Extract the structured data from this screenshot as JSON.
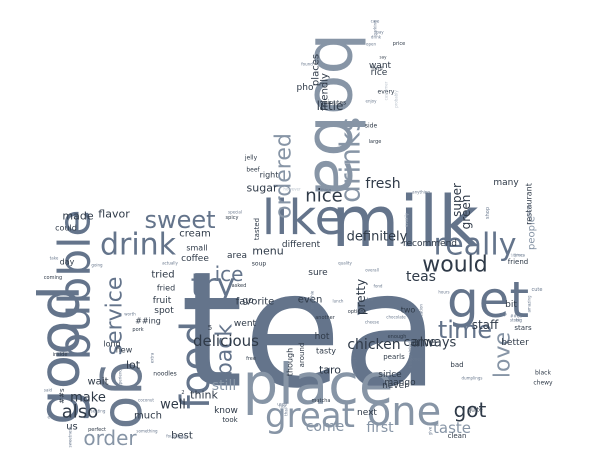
{
  "colors": {
    "background": "#ffffff",
    "palette": [
      "#64748b",
      "#2f3a48",
      "#8795a6",
      "#6b7a8f",
      "#b9c2cc",
      "#98a4b3",
      "#3c4757"
    ]
  },
  "words": [
    {
      "text": "tea",
      "weight": 100,
      "rotate": 0,
      "color": 0
    },
    {
      "text": "milk",
      "weight": 62,
      "rotate": 0,
      "color": 0
    },
    {
      "text": "place",
      "weight": 56,
      "rotate": 0,
      "color": 2
    },
    {
      "text": "boba",
      "weight": 55,
      "rotate": 90,
      "color": 2
    },
    {
      "text": "good",
      "weight": 54,
      "rotate": 270,
      "color": 0
    },
    {
      "text": "go",
      "weight": 48,
      "rotate": 90,
      "color": 3
    },
    {
      "text": "get",
      "weight": 44,
      "rotate": 0,
      "color": 0
    },
    {
      "text": "like",
      "weight": 42,
      "rotate": 0,
      "color": 0
    },
    {
      "text": "bubble",
      "weight": 40,
      "rotate": 270,
      "color": 0
    },
    {
      "text": "one",
      "weight": 36,
      "rotate": 0,
      "color": 2
    },
    {
      "text": "food",
      "weight": 36,
      "rotate": 270,
      "color": 0
    },
    {
      "text": "great",
      "weight": 34,
      "rotate": 0,
      "color": 2
    },
    {
      "text": "drinks",
      "weight": 32,
      "rotate": 270,
      "color": 2
    },
    {
      "text": "drink",
      "weight": 30,
      "rotate": 0,
      "color": 0
    },
    {
      "text": "try",
      "weight": 30,
      "rotate": 0,
      "color": 0
    },
    {
      "text": "really",
      "weight": 28,
      "rotate": 0,
      "color": 0
    },
    {
      "text": "time",
      "weight": 26,
      "rotate": 0,
      "color": 0
    },
    {
      "text": "sweet",
      "weight": 26,
      "rotate": 0,
      "color": 0
    },
    {
      "text": "would",
      "weight": 25,
      "rotate": 0,
      "color": 1
    },
    {
      "text": "ordered",
      "weight": 24,
      "rotate": 270,
      "color": 2
    },
    {
      "text": "back",
      "weight": 24,
      "rotate": 270,
      "color": 0
    },
    {
      "text": "service",
      "weight": 24,
      "rotate": 270,
      "color": 0
    },
    {
      "text": "got",
      "weight": 22,
      "rotate": 0,
      "color": 1
    },
    {
      "text": "love",
      "weight": 22,
      "rotate": 270,
      "color": 2
    },
    {
      "text": "order",
      "weight": 20,
      "rotate": 0,
      "color": 2
    },
    {
      "text": "ice",
      "weight": 20,
      "rotate": 0,
      "color": 0
    },
    {
      "text": "also",
      "weight": 18,
      "rotate": 0,
      "color": 1
    },
    {
      "text": "nice",
      "weight": 18,
      "rotate": 0,
      "color": 1
    },
    {
      "text": "delicious",
      "weight": 16,
      "rotate": 0,
      "color": 1
    },
    {
      "text": "chicken",
      "weight": 16,
      "rotate": 0,
      "color": 1
    },
    {
      "text": "fresh",
      "weight": 16,
      "rotate": 0,
      "color": 1
    },
    {
      "text": "taste",
      "weight": 15,
      "rotate": 0,
      "color": 2
    },
    {
      "text": "come",
      "weight": 15,
      "rotate": 0,
      "color": 2
    },
    {
      "text": "first",
      "weight": 15,
      "rotate": 0,
      "color": 2
    },
    {
      "text": "make",
      "weight": 14,
      "rotate": 0,
      "color": 1
    },
    {
      "text": "well",
      "weight": 14,
      "rotate": 0,
      "color": 1
    },
    {
      "text": "always",
      "weight": 14,
      "rotate": 0,
      "color": 1
    },
    {
      "text": "came",
      "weight": 14,
      "rotate": 0,
      "color": 1
    },
    {
      "text": "definitely",
      "weight": 14,
      "rotate": 0,
      "color": 1
    },
    {
      "text": "teas",
      "weight": 14,
      "rotate": 0,
      "color": 1
    },
    {
      "text": "flavor",
      "weight": 12,
      "rotate": 0,
      "color": 1
    },
    {
      "text": "menu",
      "weight": 12,
      "rotate": 0,
      "color": 1
    },
    {
      "text": "sugar",
      "weight": 12,
      "rotate": 0,
      "color": 1
    },
    {
      "text": "pretty",
      "weight": 12,
      "rotate": 270,
      "color": 1
    },
    {
      "text": "super",
      "weight": 12,
      "rotate": 270,
      "color": 1
    },
    {
      "text": "green",
      "weight": 12,
      "rotate": 270,
      "color": 1
    },
    {
      "text": "staff",
      "weight": 12,
      "rotate": 0,
      "color": 1
    },
    {
      "text": "people",
      "weight": 11,
      "rotate": 270,
      "color": 2
    },
    {
      "text": "little",
      "weight": 12,
      "rotate": 0,
      "color": 1
    },
    {
      "text": "friendly",
      "weight": 12,
      "rotate": 270,
      "color": 1
    },
    {
      "text": "places",
      "weight": 11,
      "rotate": 270,
      "color": 1
    },
    {
      "text": "made",
      "weight": 11,
      "rotate": 0,
      "color": 1
    },
    {
      "text": "tried",
      "weight": 11,
      "rotate": 0,
      "color": 1
    },
    {
      "text": "best",
      "weight": 11,
      "rotate": 0,
      "color": 1
    },
    {
      "text": "much",
      "weight": 11,
      "rotate": 0,
      "color": 1
    },
    {
      "text": "even",
      "weight": 11,
      "rotate": 0,
      "color": 1
    },
    {
      "text": "different",
      "weight": 9,
      "rotate": 0,
      "color": 1
    },
    {
      "text": "recommend",
      "weight": 9,
      "rotate": 0,
      "color": 1
    },
    {
      "text": "many",
      "weight": 9,
      "rotate": 0,
      "color": 1
    },
    {
      "text": "restaurant",
      "weight": 8,
      "rotate": 270,
      "color": 1
    },
    {
      "text": "cream",
      "weight": 11,
      "rotate": 0,
      "color": 1
    },
    {
      "text": "think",
      "weight": 11,
      "rotate": 0,
      "color": 1
    },
    {
      "text": "favorite",
      "weight": 10,
      "rotate": 0,
      "color": 1
    },
    {
      "text": "coffee",
      "weight": 9,
      "rotate": 0,
      "color": 1
    },
    {
      "text": "lot",
      "weight": 11,
      "rotate": 0,
      "color": 1
    },
    {
      "text": "us",
      "weight": 10,
      "rotate": 0,
      "color": 1
    },
    {
      "text": "wait",
      "weight": 10,
      "rotate": 0,
      "color": 1
    },
    {
      "text": "know",
      "weight": 9,
      "rotate": 0,
      "color": 1
    },
    {
      "text": "taro",
      "weight": 11,
      "rotate": 0,
      "color": 1
    },
    {
      "text": "hot",
      "weight": 9,
      "rotate": 0,
      "color": 1
    },
    {
      "text": "sure",
      "weight": 9,
      "rotate": 0,
      "color": 1
    },
    {
      "text": "next",
      "weight": 9,
      "rotate": 0,
      "color": 1
    },
    {
      "text": "since",
      "weight": 9,
      "rotate": 0,
      "color": 1
    },
    {
      "text": "never",
      "weight": 9,
      "rotate": 0,
      "color": 1
    },
    {
      "text": "mango",
      "weight": 9,
      "rotate": 0,
      "color": 1
    },
    {
      "text": "better",
      "weight": 9,
      "rotate": 0,
      "color": 1
    },
    {
      "text": "bit",
      "weight": 9,
      "rotate": 0,
      "color": 1
    },
    {
      "text": "went",
      "weight": 9,
      "rotate": 0,
      "color": 1
    },
    {
      "text": "fruit",
      "weight": 9,
      "rotate": 0,
      "color": 1
    },
    {
      "text": "spot",
      "weight": 9,
      "rotate": 0,
      "color": 1
    },
    {
      "text": "area",
      "weight": 9,
      "rotate": 0,
      "color": 1
    },
    {
      "text": "go",
      "weight": 9,
      "rotate": 0,
      "color": 1
    },
    {
      "text": "pho",
      "weight": 9,
      "rotate": 0,
      "color": 1
    },
    {
      "text": "rice",
      "weight": 9,
      "rotate": 0,
      "color": 1
    },
    {
      "text": "want",
      "weight": 9,
      "rotate": 0,
      "color": 1
    },
    {
      "text": "right",
      "weight": 8,
      "rotate": 0,
      "color": 1
    },
    {
      "text": "new",
      "weight": 8,
      "rotate": 0,
      "color": 1
    },
    {
      "text": "small",
      "weight": 8,
      "rotate": 0,
      "color": 1
    },
    {
      "text": "fried",
      "weight": 8,
      "rotate": 0,
      "color": 1
    },
    {
      "text": "could",
      "weight": 8,
      "rotate": 0,
      "color": 1
    },
    {
      "text": "long",
      "weight": 8,
      "rotate": 0,
      "color": 1
    },
    {
      "text": "day",
      "weight": 8,
      "rotate": 0,
      "color": 1
    },
    {
      "text": "two",
      "weight": 8,
      "rotate": 0,
      "color": 1
    },
    {
      "text": "tasty",
      "weight": 8,
      "rotate": 0,
      "color": 1
    },
    {
      "text": "stars",
      "weight": 8,
      "rotate": 0,
      "color": 1
    },
    {
      "text": "friend",
      "weight": 7,
      "rotate": 0,
      "color": 1
    },
    {
      "text": "black",
      "weight": 6,
      "rotate": 0,
      "color": 1
    },
    {
      "text": "chewy",
      "weight": 6,
      "rotate": 0,
      "color": 1
    },
    {
      "text": "quite",
      "weight": 6,
      "rotate": 0,
      "color": 1
    },
    {
      "text": "clean",
      "weight": 7,
      "rotate": 0,
      "color": 1
    },
    {
      "text": "bad",
      "weight": 7,
      "rotate": 0,
      "color": 1
    },
    {
      "text": "pearls",
      "weight": 7,
      "rotate": 0,
      "color": 1
    },
    {
      "text": "around",
      "weight": 7,
      "rotate": 270,
      "color": 1
    },
    {
      "text": "though",
      "weight": 8,
      "rotate": 270,
      "color": 1
    },
    {
      "text": "tasted",
      "weight": 7,
      "rotate": 270,
      "color": 1
    },
    {
      "text": "minutes",
      "weight": 6,
      "rotate": 0,
      "color": 1
    },
    {
      "text": "large",
      "weight": 5,
      "rotate": 0,
      "color": 1
    },
    {
      "text": "side",
      "weight": 6,
      "rotate": 0,
      "color": 1
    },
    {
      "text": "every",
      "weight": 6,
      "rotate": 0,
      "color": 1
    },
    {
      "text": "beef",
      "weight": 6,
      "rotate": 0,
      "color": 1
    },
    {
      "text": "jelly",
      "weight": 6,
      "rotate": 0,
      "color": 1
    },
    {
      "text": "soup",
      "weight": 6,
      "rotate": 0,
      "color": 1
    },
    {
      "text": "price",
      "weight": 5,
      "rotate": 0,
      "color": 1
    },
    {
      "text": "perfect",
      "weight": 5,
      "rotate": 0,
      "color": 1
    },
    {
      "text": "inside",
      "weight": 5,
      "rotate": 0,
      "color": 1
    },
    {
      "text": "coming",
      "weight": 5,
      "rotate": 0,
      "color": 1
    },
    {
      "text": "pork",
      "weight": 5,
      "rotate": 0,
      "color": 1
    },
    {
      "text": "spicy",
      "weight": 6,
      "rotate": 0,
      "color": 1
    },
    {
      "text": "matcha",
      "weight": 5,
      "rotate": 0,
      "color": 1
    },
    {
      "text": "hard",
      "weight": 5,
      "rotate": 0,
      "color": 1
    },
    {
      "text": "options",
      "weight": 5,
      "rotate": 0,
      "color": 1
    },
    {
      "text": "asked",
      "weight": 5,
      "rotate": 0,
      "color": 1
    },
    {
      "text": "took",
      "weight": 5,
      "rotate": 0,
      "color": 1
    },
    {
      "text": "still",
      "weight": 7,
      "rotate": 0,
      "color": 2
    },
    {
      "text": "##s",
      "weight": 14,
      "rotate": 270,
      "color": 1
    },
    {
      "text": "##ing",
      "weight": 7,
      "rotate": 0,
      "color": 1
    },
    {
      "text": "5",
      "weight": 8,
      "rotate": 0,
      "color": 1
    },
    {
      "text": "2",
      "weight": 7,
      "rotate": 0,
      "color": 1
    },
    {
      "text": "noodles",
      "weight": 5,
      "rotate": 0,
      "color": 1
    },
    {
      "text": "another",
      "weight": 6,
      "rotate": 0,
      "color": 1
    },
    {
      "text": "enough",
      "weight": 5,
      "rotate": 0,
      "color": 1
    },
    {
      "text": "free",
      "weight": 5,
      "rotate": 0,
      "color": 1
    },
    {
      "text": "say",
      "weight": 5,
      "rotate": 0,
      "color": 1
    },
    {
      "text": "enjoy",
      "weight": 4,
      "rotate": 0,
      "color": 3
    },
    {
      "text": "lunch",
      "weight": 4,
      "rotate": 0,
      "color": 3
    },
    {
      "text": "worth",
      "weight": 4,
      "rotate": 0,
      "color": 3
    },
    {
      "text": "overall",
      "weight": 4,
      "rotate": 0,
      "color": 3
    },
    {
      "text": "coconut",
      "weight": 4,
      "rotate": 0,
      "color": 3
    },
    {
      "text": "toppings",
      "weight": 4,
      "rotate": 270,
      "color": 3
    },
    {
      "text": "chocolate",
      "weight": 4,
      "rotate": 0,
      "color": 3
    },
    {
      "text": "dumplings",
      "weight": 4,
      "rotate": 0,
      "color": 3
    },
    {
      "text": "sweetness",
      "weight": 4,
      "rotate": 270,
      "color": 3
    },
    {
      "text": "however",
      "weight": 4,
      "rotate": 0,
      "color": 4
    },
    {
      "text": "thing",
      "weight": 4,
      "rotate": 0,
      "color": 3
    },
    {
      "text": "quality",
      "weight": 4,
      "rotate": 0,
      "color": 3
    },
    {
      "text": "cute",
      "weight": 4,
      "rotate": 0,
      "color": 3
    },
    {
      "text": "customer",
      "weight": 5,
      "rotate": 270,
      "color": 4
    },
    {
      "text": "probably",
      "weight": 4,
      "rotate": 270,
      "color": 4
    },
    {
      "text": "usually",
      "weight": 4,
      "rotate": 270,
      "color": 4
    },
    {
      "text": "shop",
      "weight": 4,
      "rotate": 270,
      "color": 3
    },
    {
      "text": "give",
      "weight": 5,
      "rotate": 270,
      "color": 3
    },
    {
      "text": "tapioca",
      "weight": 4,
      "rotate": 0,
      "color": 4
    },
    {
      "text": "found",
      "weight": 4,
      "rotate": 0,
      "color": 3
    },
    {
      "text": "smoothie",
      "weight": 4,
      "rotate": 270,
      "color": 3
    },
    {
      "text": "special",
      "weight": 4,
      "rotate": 0,
      "color": 3
    },
    {
      "text": "actually",
      "weight": 4,
      "rotate": 0,
      "color": 3
    },
    {
      "text": "times",
      "weight": 4,
      "rotate": 0,
      "color": 3
    },
    {
      "text": "found",
      "weight": 4,
      "rotate": 0,
      "color": 3
    },
    {
      "text": "something",
      "weight": 4,
      "rotate": 0,
      "color": 3
    },
    {
      "text": "anything",
      "weight": 4,
      "rotate": 0,
      "color": 3
    },
    {
      "text": "cheese",
      "weight": 4,
      "rotate": 0,
      "color": 3
    },
    {
      "text": "fast",
      "weight": 4,
      "rotate": 0,
      "color": 3
    },
    {
      "text": "big",
      "weight": 4,
      "rotate": 0,
      "color": 3
    },
    {
      "text": "store",
      "weight": 4,
      "rotate": 0,
      "color": 3
    },
    {
      "text": "used",
      "weight": 4,
      "rotate": 0,
      "color": 3
    },
    {
      "text": "tea",
      "weight": 4,
      "rotate": 0,
      "color": 3
    },
    {
      "text": "fond",
      "weight": 4,
      "rotate": 0,
      "color": 3
    },
    {
      "text": "seating",
      "weight": 4,
      "rotate": 0,
      "color": 3
    },
    {
      "text": "going",
      "weight": 5,
      "rotate": 0,
      "color": 3
    },
    {
      "text": "experience",
      "weight": 4,
      "rotate": 270,
      "color": 3
    },
    {
      "text": "said",
      "weight": 4,
      "rotate": 0,
      "color": 3
    },
    {
      "text": "add",
      "weight": 4,
      "rotate": 0,
      "color": 3
    },
    {
      "text": "extra",
      "weight": 4,
      "rotate": 270,
      "color": 3
    },
    {
      "text": "honey",
      "weight": 4,
      "rotate": 0,
      "color": 3
    },
    {
      "text": "thai",
      "weight": 4,
      "rotate": 270,
      "color": 3
    },
    {
      "text": "take",
      "weight": 4,
      "rotate": 0,
      "color": 3
    },
    {
      "text": "##ed",
      "weight": 4,
      "rotate": 0,
      "color": 3
    },
    {
      "text": "disappointed",
      "weight": 4,
      "rotate": 270,
      "color": 3
    },
    {
      "text": "ever",
      "weight": 4,
      "rotate": 0,
      "color": 3
    },
    {
      "text": "3",
      "weight": 4,
      "rotate": 0,
      "color": 3
    },
    {
      "text": "flavors",
      "weight": 4,
      "rotate": 270,
      "color": 3
    },
    {
      "text": "cup",
      "weight": 4,
      "rotate": 0,
      "color": 3
    },
    {
      "text": "location",
      "weight": 4,
      "rotate": 270,
      "color": 3
    },
    {
      "text": "hours",
      "weight": 4,
      "rotate": 0,
      "color": 3
    },
    {
      "text": "amazing",
      "weight": 4,
      "rotate": 270,
      "color": 3
    },
    {
      "text": "pay",
      "weight": 4,
      "rotate": 0,
      "color": 3
    },
    {
      "text": "open",
      "weight": 4,
      "rotate": 0,
      "color": 3
    },
    {
      "text": "drink",
      "weight": 4,
      "rotate": 0,
      "color": 3
    },
    {
      "text": "parking",
      "weight": 4,
      "rotate": 270,
      "color": 3
    },
    {
      "text": "care",
      "weight": 4,
      "rotate": 0,
      "color": 3
    },
    {
      "text": "everyone",
      "weight": 4,
      "rotate": 0,
      "color": 3
    },
    {
      "text": "cold",
      "weight": 4,
      "rotate": 0,
      "color": 3
    },
    {
      "text": "hang",
      "weight": 4,
      "rotate": 0,
      "color": 3
    },
    {
      "text": "waiting",
      "weight": 4,
      "rotate": 0,
      "color": 3
    }
  ]
}
